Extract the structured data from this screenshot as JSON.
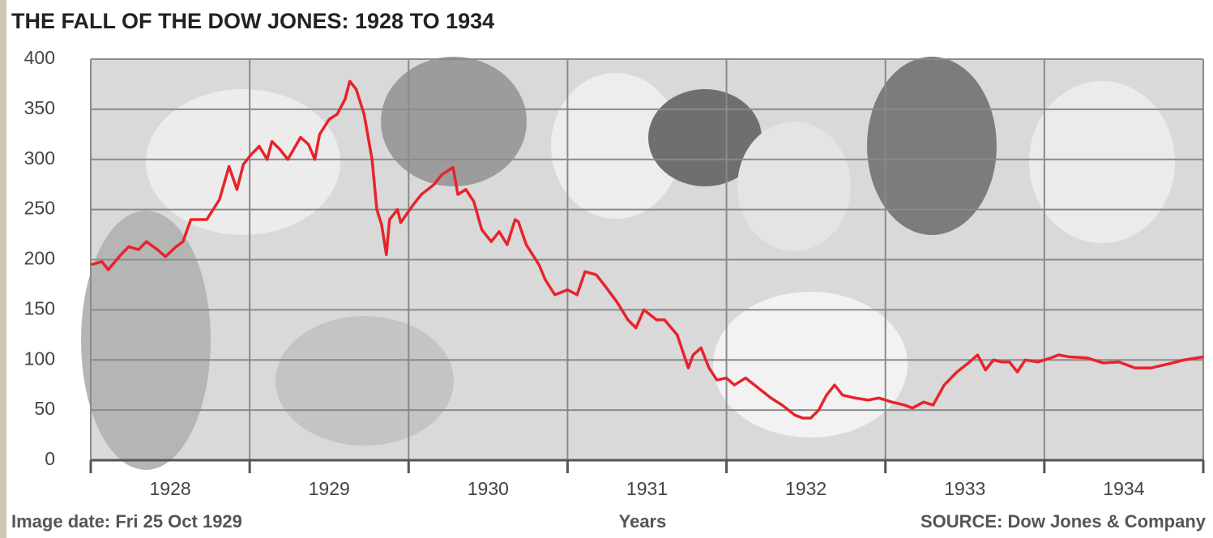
{
  "chart_data": {
    "type": "line",
    "title": "THE FALL OF THE DOW JONES: 1928 TO 1934",
    "note": "Image date: Fri 25 Oct 1929",
    "x_label": "Years",
    "source": "SOURCE: Dow Jones & Company",
    "categories": [
      "1928",
      "1929",
      "1930",
      "1931",
      "1932",
      "1933",
      "1934"
    ],
    "xlim": [
      1928,
      1935
    ],
    "ylim": [
      0,
      400
    ],
    "yticks": [
      0,
      50,
      100,
      150,
      200,
      250,
      300,
      350,
      400
    ],
    "grid": true,
    "series": [
      {
        "color": "#e8232a",
        "x": [
          1928.0,
          1928.07,
          1928.11,
          1928.19,
          1928.24,
          1928.3,
          1928.35,
          1928.42,
          1928.47,
          1928.53,
          1928.58,
          1928.63,
          1928.73,
          1928.81,
          1928.87,
          1928.92,
          1928.96,
          1929.01,
          1929.06,
          1929.11,
          1929.14,
          1929.19,
          1929.24,
          1929.32,
          1929.37,
          1929.41,
          1929.44,
          1929.5,
          1929.55,
          1929.6,
          1929.63,
          1929.67,
          1929.72,
          1929.77,
          1929.8,
          1929.83,
          1929.86,
          1929.88,
          1929.93,
          1929.95,
          1930.03,
          1930.08,
          1930.16,
          1930.21,
          1930.28,
          1930.31,
          1930.36,
          1930.41,
          1930.46,
          1930.52,
          1930.57,
          1930.62,
          1930.67,
          1930.69,
          1930.74,
          1930.82,
          1930.86,
          1930.92,
          1931.0,
          1931.06,
          1931.11,
          1931.18,
          1931.23,
          1931.31,
          1931.38,
          1931.43,
          1931.48,
          1931.56,
          1931.61,
          1931.69,
          1931.76,
          1931.79,
          1931.84,
          1931.89,
          1931.94,
          1932.0,
          1932.05,
          1932.12,
          1932.2,
          1932.28,
          1932.35,
          1932.43,
          1932.48,
          1932.53,
          1932.58,
          1932.63,
          1932.68,
          1932.73,
          1932.81,
          1932.89,
          1932.96,
          1933.04,
          1933.12,
          1933.17,
          1933.24,
          1933.3,
          1933.37,
          1933.45,
          1933.53,
          1933.58,
          1933.63,
          1933.68,
          1933.73,
          1933.78,
          1933.83,
          1933.88,
          1933.96,
          1934.04,
          1934.09,
          1934.16,
          1934.27,
          1934.37,
          1934.47,
          1934.57,
          1934.67,
          1934.78,
          1934.88,
          1935.0
        ],
        "values": [
          195,
          198,
          190,
          205,
          213,
          210,
          218,
          210,
          203,
          212,
          218,
          240,
          240,
          260,
          293,
          270,
          295,
          305,
          313,
          300,
          318,
          310,
          300,
          322,
          315,
          300,
          325,
          340,
          345,
          360,
          378,
          370,
          345,
          300,
          250,
          235,
          205,
          240,
          250,
          237,
          255,
          265,
          275,
          285,
          292,
          265,
          270,
          258,
          230,
          218,
          228,
          215,
          240,
          238,
          215,
          195,
          180,
          165,
          170,
          165,
          188,
          185,
          175,
          158,
          140,
          132,
          150,
          140,
          140,
          125,
          92,
          105,
          112,
          92,
          80,
          82,
          75,
          82,
          72,
          62,
          55,
          45,
          42,
          42,
          50,
          65,
          75,
          65,
          62,
          60,
          62,
          58,
          55,
          52,
          58,
          55,
          75,
          88,
          98,
          105,
          90,
          100,
          98,
          98,
          88,
          100,
          98,
          102,
          105,
          103,
          102,
          97,
          98,
          92,
          92,
          96,
          100,
          103
        ]
      }
    ]
  }
}
